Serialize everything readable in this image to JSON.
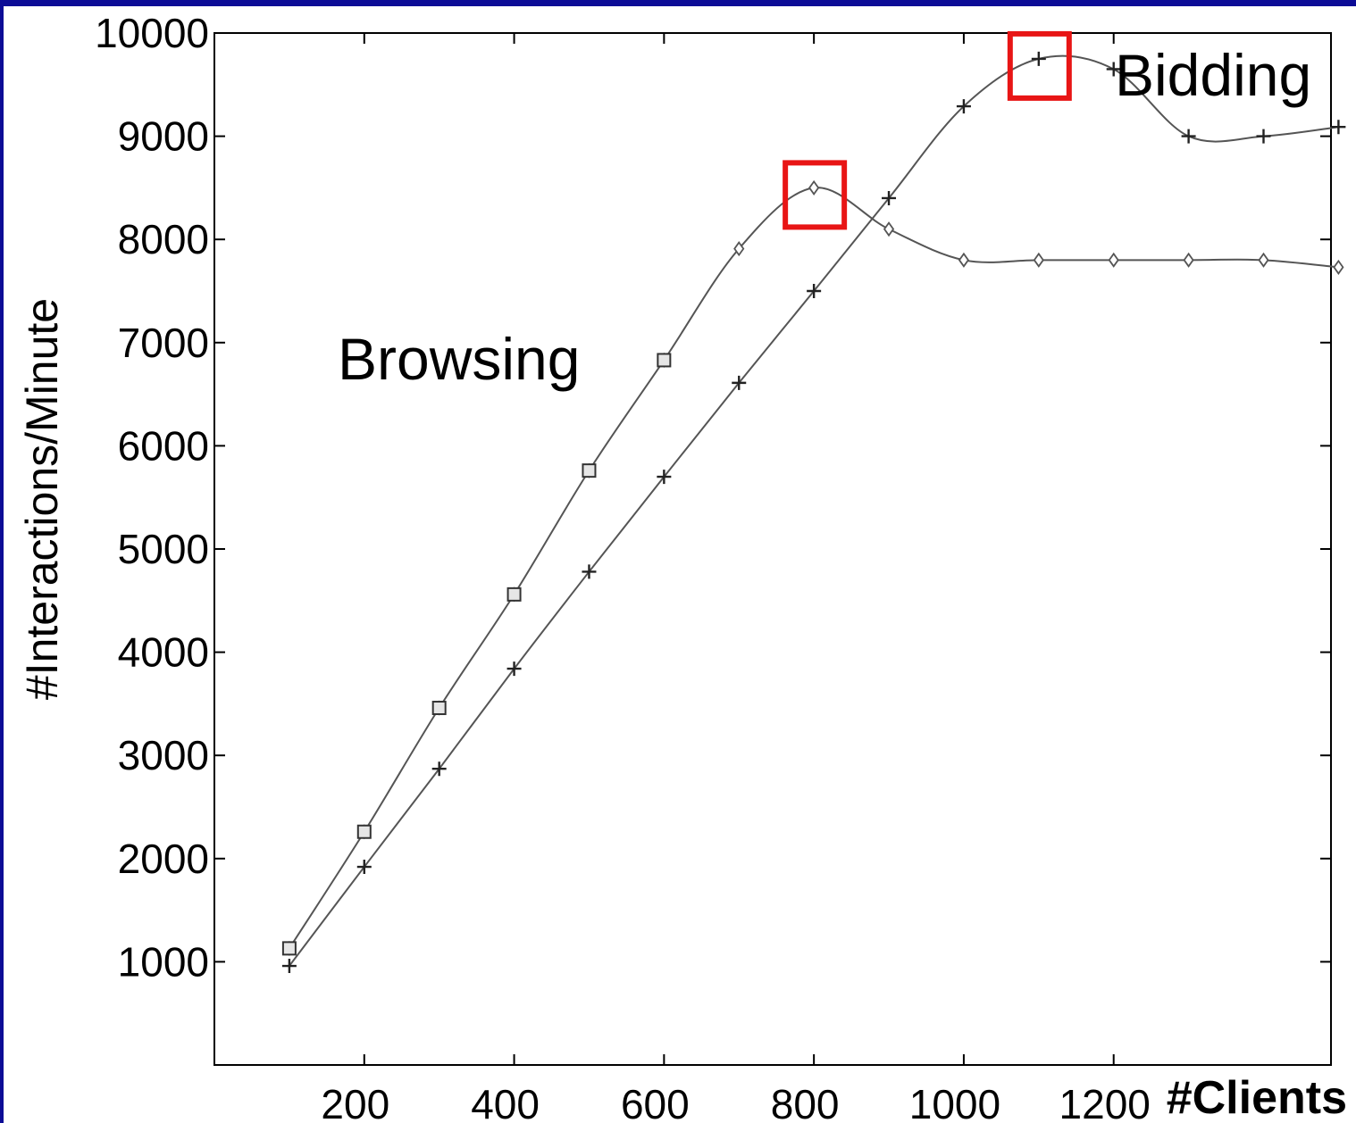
{
  "chart_data": {
    "type": "line",
    "title": "",
    "xlabel": "#Clients",
    "ylabel": "#Interactions/Minute",
    "xlim": [
      0,
      1490
    ],
    "ylim": [
      0,
      10000
    ],
    "xticks": [
      200,
      400,
      600,
      800,
      1000,
      1200
    ],
    "yticks": [
      1000,
      2000,
      3000,
      4000,
      5000,
      6000,
      7000,
      8000,
      9000,
      10000
    ],
    "grid": false,
    "legend": "none",
    "colors": {
      "line": "#555555",
      "highlight": "#e81515",
      "frame_border": "#0c0c96"
    },
    "series": [
      {
        "name": "Browsing",
        "marker": "diamond",
        "x": [
          100,
          200,
          300,
          400,
          500,
          600,
          700,
          800,
          900,
          1000,
          1100,
          1200,
          1300,
          1400,
          1500
        ],
        "y": [
          1130,
          2260,
          3460,
          4560,
          5760,
          6830,
          7910,
          8500,
          8100,
          7800,
          7800,
          7800,
          7800,
          7800,
          7730
        ]
      },
      {
        "name": "Bidding",
        "marker": "plus",
        "x": [
          100,
          200,
          300,
          400,
          500,
          600,
          700,
          800,
          900,
          1000,
          1100,
          1200,
          1300,
          1400,
          1500
        ],
        "y": [
          960,
          1920,
          2870,
          3840,
          4780,
          5700,
          6610,
          7500,
          8400,
          9290,
          9750,
          9650,
          9000,
          9000,
          9090
        ]
      }
    ],
    "annotations": [
      {
        "text": "Browsing",
        "series": "Browsing",
        "x": 800,
        "y": 8500
      },
      {
        "text": "Bidding",
        "series": "Bidding",
        "x": 1100,
        "y": 9750
      }
    ]
  }
}
